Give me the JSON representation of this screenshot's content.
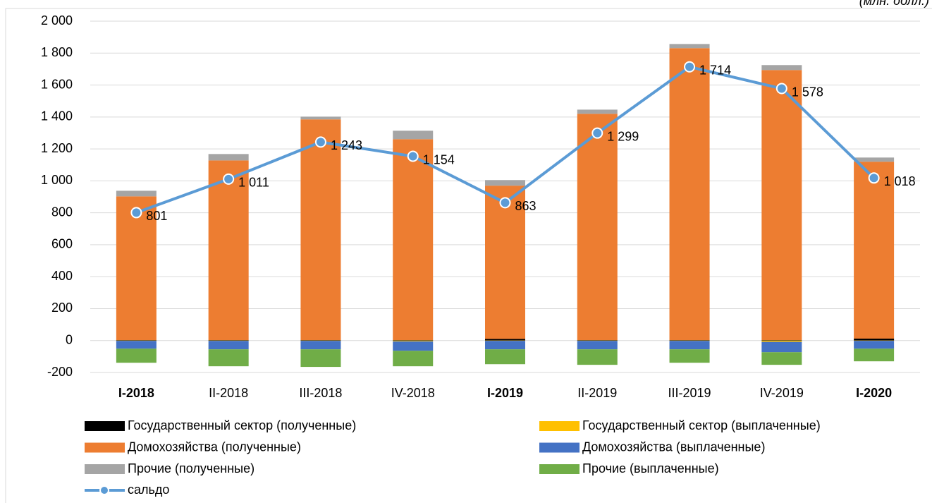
{
  "chart_data": {
    "type": "bar",
    "title": "(млн. долл.)",
    "categories": [
      "I-2018",
      "II-2018",
      "III-2018",
      "IV-2018",
      "I-2019",
      "II-2019",
      "III-2019",
      "IV-2019",
      "I-2020"
    ],
    "series": [
      {
        "name": "Государственный сектор (полученные)",
        "color": "#000000",
        "values": [
          3,
          3,
          3,
          3,
          10,
          3,
          3,
          3,
          12
        ]
      },
      {
        "name": "Государственный сектор (выплаченные)",
        "color": "#ffc000",
        "values": [
          -2,
          -2,
          -2,
          -5,
          -2,
          -2,
          -2,
          -8,
          -2
        ]
      },
      {
        "name": "Домохозяйства (полученные)",
        "color": "#ed7d31",
        "values": [
          900,
          1125,
          1382,
          1258,
          960,
          1417,
          1828,
          1691,
          1108
        ]
      },
      {
        "name": "Домохозяйства (выплаченные)",
        "color": "#4472c4",
        "values": [
          -49,
          -53,
          -53,
          -59,
          -53,
          -53,
          -53,
          -65,
          -49
        ]
      },
      {
        "name": "Прочие (полученные)",
        "color": "#a5a5a5",
        "values": [
          35,
          40,
          17,
          53,
          35,
          26,
          26,
          31,
          26
        ]
      },
      {
        "name": "Прочие (выплаченные)",
        "color": "#70ad47",
        "values": [
          -88,
          -106,
          -110,
          -97,
          -93,
          -97,
          -84,
          -79,
          -79
        ]
      },
      {
        "name": "сальдо",
        "type": "line",
        "color": "#5b9bd5",
        "values": [
          801,
          1011,
          1243,
          1154,
          863,
          1299,
          1714,
          1578,
          1018
        ],
        "value_labels": [
          "801",
          "1 011",
          "1 243",
          "1 154",
          "863",
          "1 299",
          "1 714",
          "1 578",
          "1 018"
        ]
      }
    ],
    "ylim": [
      -200,
      2000
    ],
    "yticks": [
      -200,
      0,
      200,
      400,
      600,
      800,
      {
        "value": 1000,
        "label": "1 000"
      },
      {
        "value": 1200,
        "label": "1 200"
      },
      {
        "value": 1400,
        "label": "1 400"
      },
      {
        "value": 1600,
        "label": "1 600"
      },
      {
        "value": 1800,
        "label": "1 800"
      },
      {
        "value": 2000,
        "label": "2 000"
      }
    ],
    "grid": true
  }
}
